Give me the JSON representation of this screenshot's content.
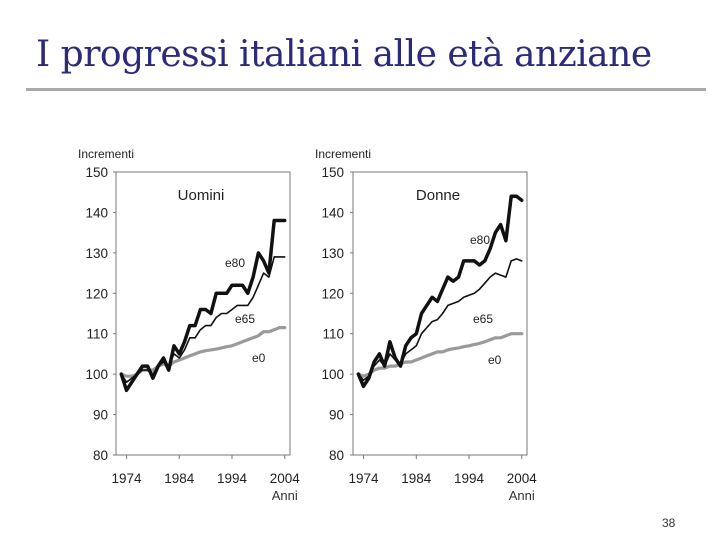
{
  "slide": {
    "title": "I progressi italiani alle età anziane",
    "page_number": "38"
  },
  "chart_data": [
    {
      "type": "line",
      "title": "Uomini",
      "ylabel": "Incrementi",
      "xlabel": "Anni",
      "ylim": [
        80,
        150
      ],
      "xlim": [
        1972,
        2005
      ],
      "yticks": [
        "150",
        "140",
        "130",
        "120",
        "110",
        "100",
        "90",
        "80"
      ],
      "xticks": [
        "1974",
        "1984",
        "1994",
        "2004"
      ],
      "grid": false,
      "series": [
        {
          "name": "e80",
          "color": "#111111",
          "x": [
            1973,
            1974,
            1975,
            1976,
            1977,
            1978,
            1979,
            1980,
            1981,
            1982,
            1983,
            1984,
            1985,
            1986,
            1987,
            1988,
            1989,
            1990,
            1991,
            1992,
            1993,
            1994,
            1995,
            1996,
            1997,
            1998,
            1999,
            2000,
            2001,
            2002,
            2003,
            2004
          ],
          "values": [
            100,
            96,
            98,
            100,
            102,
            102,
            99,
            102,
            104,
            101,
            107,
            105,
            108,
            112,
            112,
            116,
            116,
            115,
            120,
            120,
            120,
            122,
            122,
            122,
            120,
            124,
            130,
            128,
            125,
            138,
            138,
            138
          ]
        },
        {
          "name": "e65",
          "color": "#111111",
          "x": [
            1973,
            1974,
            1975,
            1976,
            1977,
            1978,
            1979,
            1980,
            1981,
            1982,
            1983,
            1984,
            1985,
            1986,
            1987,
            1988,
            1989,
            1990,
            1991,
            1992,
            1993,
            1994,
            1995,
            1996,
            1997,
            1998,
            1999,
            2000,
            2001,
            2002,
            2003,
            2004
          ],
          "values": [
            100,
            98,
            99,
            100,
            101,
            101,
            100,
            102,
            103,
            102,
            105,
            104,
            106,
            109,
            109,
            111,
            112,
            112,
            114,
            115,
            115,
            116,
            117,
            117,
            117,
            119,
            122,
            125,
            124,
            129,
            129,
            129
          ]
        },
        {
          "name": "e0",
          "color": "#9a9a9a",
          "x": [
            1973,
            1974,
            1975,
            1976,
            1977,
            1978,
            1979,
            1980,
            1981,
            1982,
            1983,
            1984,
            1985,
            1986,
            1987,
            1988,
            1989,
            1990,
            1991,
            1992,
            1993,
            1994,
            1995,
            1996,
            1997,
            1998,
            1999,
            2000,
            2001,
            2002,
            2003,
            2004
          ],
          "values": [
            100,
            99.5,
            99.5,
            100,
            101,
            101,
            101,
            102,
            102.5,
            102,
            103,
            103.5,
            104,
            104.5,
            105,
            105.5,
            105.8,
            106,
            106.2,
            106.5,
            106.8,
            107,
            107.5,
            108,
            108.5,
            109,
            109.5,
            110.5,
            110.5,
            111,
            111.5,
            111.5
          ]
        }
      ]
    },
    {
      "type": "line",
      "title": "Donne",
      "ylabel": "Incrementi",
      "xlabel": "Anni",
      "ylim": [
        80,
        150
      ],
      "xlim": [
        1972,
        2005
      ],
      "yticks": [
        "150",
        "140",
        "130",
        "120",
        "110",
        "100",
        "90",
        "80"
      ],
      "xticks": [
        "1974",
        "1984",
        "1994",
        "2004"
      ],
      "grid": false,
      "series": [
        {
          "name": "e80",
          "color": "#111111",
          "x": [
            1973,
            1974,
            1975,
            1976,
            1977,
            1978,
            1979,
            1980,
            1981,
            1982,
            1983,
            1984,
            1985,
            1986,
            1987,
            1988,
            1989,
            1990,
            1991,
            1992,
            1993,
            1994,
            1995,
            1996,
            1997,
            1998,
            1999,
            2000,
            2001,
            2002,
            2003,
            2004
          ],
          "values": [
            100,
            97,
            99,
            103,
            105,
            102,
            108,
            104,
            102,
            107,
            109,
            110,
            115,
            117,
            119,
            118,
            121,
            124,
            123,
            124,
            128,
            128,
            128,
            127,
            128,
            131,
            135,
            137,
            133,
            144,
            144,
            143
          ]
        },
        {
          "name": "e65",
          "color": "#111111",
          "x": [
            1973,
            1974,
            1975,
            1976,
            1977,
            1978,
            1979,
            1980,
            1981,
            1982,
            1983,
            1984,
            1985,
            1986,
            1987,
            1988,
            1989,
            1990,
            1991,
            1992,
            1993,
            1994,
            1995,
            1996,
            1997,
            1998,
            1999,
            2000,
            2001,
            2002,
            2003,
            2004
          ],
          "values": [
            100,
            98.5,
            99.5,
            102,
            103.5,
            102,
            105,
            103.5,
            102.5,
            105,
            106,
            107,
            110,
            111.5,
            113,
            113.5,
            115,
            117,
            117.5,
            118,
            119,
            119.5,
            120,
            121,
            122.5,
            124,
            125,
            124.5,
            124,
            128,
            128.5,
            128
          ]
        },
        {
          "name": "e0",
          "color": "#9a9a9a",
          "x": [
            1973,
            1974,
            1975,
            1976,
            1977,
            1978,
            1979,
            1980,
            1981,
            1982,
            1983,
            1984,
            1985,
            1986,
            1987,
            1988,
            1989,
            1990,
            1991,
            1992,
            1993,
            1994,
            1995,
            1996,
            1997,
            1998,
            1999,
            2000,
            2001,
            2002,
            2003,
            2004
          ],
          "values": [
            100,
            99.5,
            100,
            101,
            101.5,
            101.5,
            102,
            102,
            102.5,
            103,
            103,
            103.5,
            104,
            104.5,
            105,
            105.5,
            105.5,
            106,
            106.3,
            106.5,
            106.8,
            107,
            107.3,
            107.6,
            108,
            108.5,
            109,
            109,
            109.5,
            110,
            110,
            110
          ]
        }
      ]
    }
  ]
}
